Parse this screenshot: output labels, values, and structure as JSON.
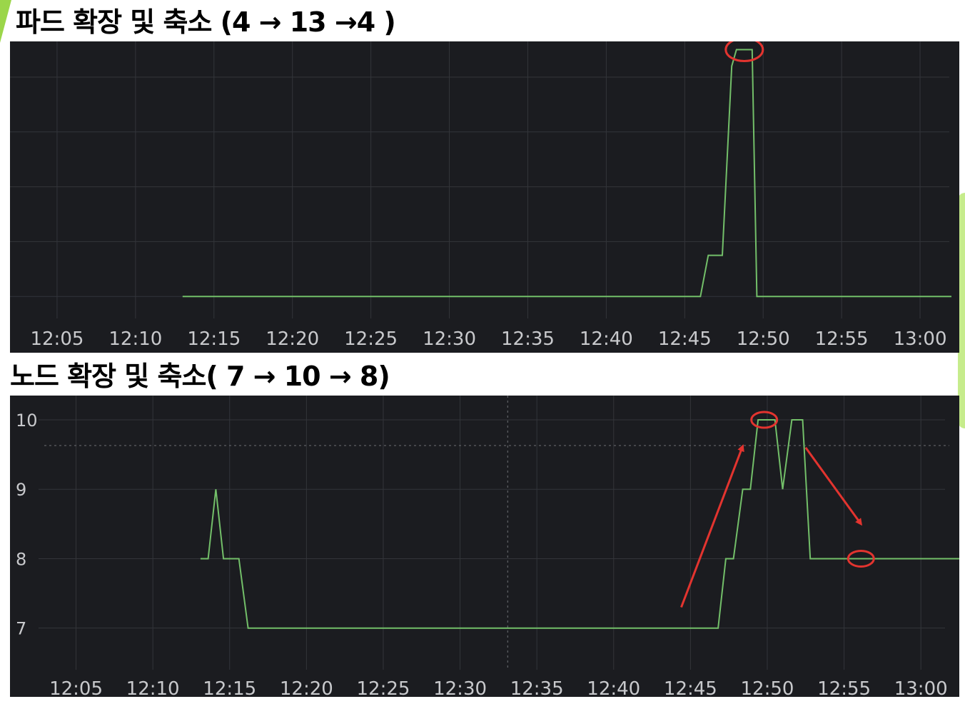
{
  "page": {
    "title1": "파드 확장 및 축소 (4 → 13 →4 )",
    "title2": "노드 확장 및 축소( 7 → 10 → 8)"
  },
  "colors": {
    "panel_bg": "#1b1c20",
    "grid": "#33353a",
    "line": "#73bf69",
    "annotation": "#e3342f",
    "tick_text": "#c8c9cc"
  },
  "chart_data": [
    {
      "type": "line",
      "title": "",
      "xlabel": "",
      "ylabel": "",
      "x_ticks": [
        "12:05",
        "12:10",
        "12:15",
        "12:20",
        "12:25",
        "12:30",
        "12:35",
        "12:40",
        "12:45",
        "12:50",
        "12:55",
        "13:00"
      ],
      "y_ticks": [],
      "xlim": [
        2.0,
        62.5
      ],
      "ylim": [
        3.2,
        13.3
      ],
      "grid": true,
      "series": [
        {
          "x": [
            13,
            46,
            46.5,
            47.4,
            48,
            48.3,
            49.3,
            49.6,
            62
          ],
          "y": [
            4,
            4,
            5.5,
            5.5,
            12.4,
            13,
            13,
            4,
            4
          ]
        }
      ],
      "annotations": [
        {
          "type": "ellipse",
          "x": 48.8,
          "y": 13
        }
      ]
    },
    {
      "type": "line",
      "title": "",
      "xlabel": "",
      "ylabel": "",
      "x_ticks": [
        "12:05",
        "12:10",
        "12:15",
        "12:20",
        "12:25",
        "12:30",
        "12:35",
        "12:40",
        "12:45",
        "12:50",
        "12:55",
        "13:00"
      ],
      "y_ticks": [
        "7",
        "8",
        "9",
        "10"
      ],
      "xlim": [
        0.7,
        62.5
      ],
      "ylim": [
        6.4,
        10.35
      ],
      "grid": true,
      "threshold_lines": [
        {
          "axis": "y",
          "value": 9.63
        },
        {
          "axis": "x",
          "value": 33.1
        }
      ],
      "series": [
        {
          "x": [
            13.1,
            13.6,
            14.1,
            14.6,
            15.6,
            16.2,
            46.8,
            47.3,
            47.8,
            48.4,
            48.9,
            49.4,
            50.5,
            51,
            51.6,
            52.3,
            52.8,
            62.5
          ],
          "y": [
            8,
            8,
            9,
            8,
            8,
            7,
            7,
            8,
            8,
            9,
            9,
            10,
            10,
            9,
            10,
            10,
            8,
            8
          ]
        }
      ],
      "annotations": [
        {
          "type": "ellipse",
          "x": 49.8,
          "y": 10
        },
        {
          "type": "ellipse",
          "x": 56.1,
          "y": 8
        },
        {
          "type": "arrow",
          "from": [
            44.4,
            7.3
          ],
          "to": [
            48.4,
            9.62
          ]
        },
        {
          "type": "arrow",
          "from": [
            52.5,
            9.6
          ],
          "to": [
            56.1,
            8.5
          ]
        }
      ]
    }
  ]
}
